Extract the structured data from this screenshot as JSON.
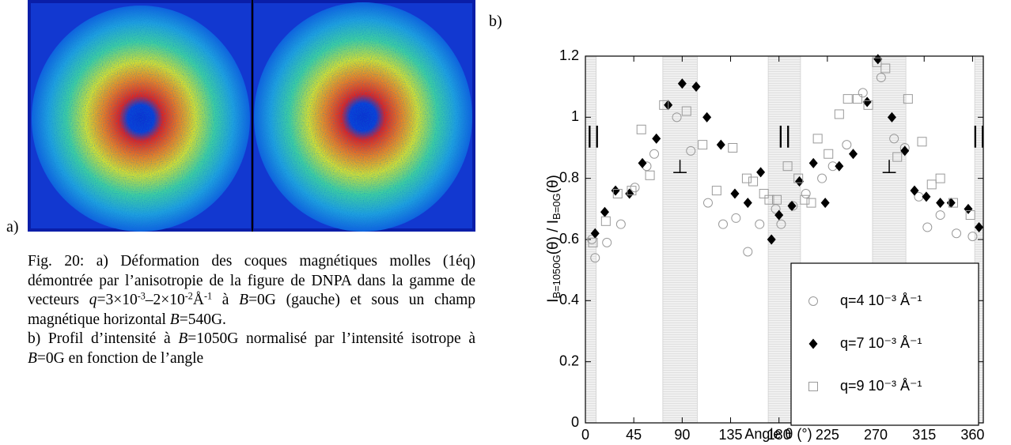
{
  "figure_a": {
    "label": "a)"
  },
  "figure_b": {
    "label": "b)"
  },
  "caption": {
    "paragraphs": [
      [
        "Fig. 20: a) Déformation des coques magnétiques molles (1éq) démontrée par l’anisotropie de la figure de DNPA dans la gamme de vecteurs ",
        "q",
        "=3×10",
        "-3",
        "–2×10",
        "-2",
        "Å",
        "-1",
        " à ",
        "B",
        "=0G (gauche) et sous un champ magnétique horizontal ",
        "B",
        "=540G."
      ],
      [
        "b) Profil d’intensité à ",
        "B",
        "=1050G normalisé par l’intensité isotrope à ",
        "B",
        "=0G en fonction de l’angle"
      ]
    ]
  },
  "chart_data": {
    "type": "scatter",
    "x_label": "Angle θ (°)",
    "y_label": {
      "parts": [
        "I",
        "B=1050G",
        "(θ) / I",
        "B=0G",
        "(θ)"
      ]
    },
    "xlim": [
      0,
      370
    ],
    "ylim": [
      0,
      1.2
    ],
    "xticks": [
      0,
      45,
      90,
      135,
      180,
      225,
      270,
      315,
      360
    ],
    "yticks": [
      0,
      0.2,
      0.4,
      0.6,
      0.8,
      1,
      1.2
    ],
    "grid": false,
    "legend": "lower right",
    "bands": [
      {
        "range": [
          0,
          10
        ],
        "label": "||"
      },
      {
        "range": [
          72,
          104
        ],
        "label": "⊥"
      },
      {
        "range": [
          170,
          200
        ],
        "label": "||"
      },
      {
        "range": [
          267,
          298
        ],
        "label": "⊥"
      },
      {
        "range": [
          362,
          370
        ],
        "label": "||"
      }
    ],
    "series": [
      {
        "name": "q=4 10⁻³ Å⁻¹",
        "marker": "circle",
        "color": "#9a9a9a",
        "x": [
          6,
          9,
          20,
          33,
          46,
          57,
          64,
          85,
          98,
          114,
          128,
          140,
          151,
          162,
          177,
          182,
          193,
          205,
          220,
          230,
          243,
          258,
          275,
          287,
          297,
          310,
          318,
          330,
          345,
          360
        ],
        "values": [
          0.6,
          0.54,
          0.59,
          0.65,
          0.77,
          0.84,
          0.88,
          1.0,
          0.89,
          0.72,
          0.65,
          0.67,
          0.56,
          0.65,
          0.7,
          0.65,
          0.71,
          0.75,
          0.8,
          0.84,
          0.91,
          1.08,
          1.13,
          0.93,
          0.9,
          0.74,
          0.64,
          0.68,
          0.62,
          0.61
        ]
      },
      {
        "name": "q=7 10⁻³ Å⁻¹",
        "marker": "diamond",
        "color": "#000000",
        "x": [
          9,
          18,
          28,
          41,
          53,
          66,
          77,
          90,
          103,
          113,
          126,
          139,
          151,
          163,
          173,
          180,
          192,
          199,
          212,
          223,
          236,
          249,
          262,
          272,
          285,
          297,
          306,
          317,
          330,
          340,
          356,
          366
        ],
        "values": [
          0.62,
          0.69,
          0.76,
          0.75,
          0.85,
          0.93,
          1.04,
          1.11,
          1.1,
          1.0,
          0.91,
          0.75,
          0.72,
          0.82,
          0.6,
          0.68,
          0.71,
          0.79,
          0.85,
          0.72,
          0.84,
          0.88,
          1.05,
          1.19,
          1.0,
          0.89,
          0.76,
          0.74,
          0.72,
          0.72,
          0.7,
          0.64
        ]
      },
      {
        "name": "q=9 10⁻³ Å⁻¹",
        "marker": "square",
        "color": "#9a9a9a",
        "x": [
          7,
          19,
          30,
          43,
          52,
          60,
          73,
          94,
          109,
          122,
          137,
          150,
          156,
          166,
          171,
          178,
          188,
          198,
          204,
          210,
          216,
          226,
          236,
          244,
          253,
          263,
          271,
          279,
          290,
          300,
          313,
          322,
          330,
          342,
          358
        ],
        "values": [
          0.59,
          0.66,
          0.75,
          0.76,
          0.96,
          0.81,
          1.04,
          1.02,
          0.91,
          0.76,
          0.9,
          0.8,
          0.79,
          0.75,
          0.73,
          0.73,
          0.84,
          0.8,
          0.73,
          0.72,
          0.93,
          0.88,
          1.01,
          1.06,
          1.06,
          1.04,
          1.18,
          1.16,
          0.87,
          1.06,
          0.92,
          0.78,
          0.8,
          0.72,
          0.68
        ]
      }
    ]
  }
}
